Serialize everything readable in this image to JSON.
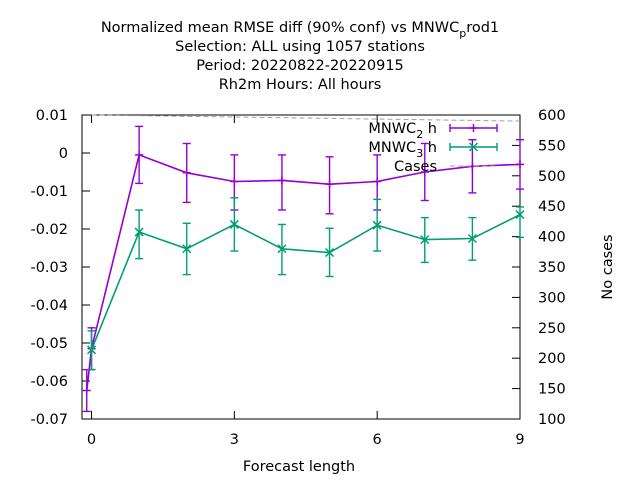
{
  "chart_data": {
    "type": "line",
    "title_lines": [
      "Normalized mean RMSE diff (90% conf) vs MNWC",
      "p",
      "rod1",
      "Selection: ALL using  1057 stations",
      "Period: 20220822-20220915",
      "Rh2m   Hours:  All hours"
    ],
    "xlabel": "Forecast length",
    "ylabel_right": "No cases",
    "xlim": [
      -0.2,
      9
    ],
    "ylim": [
      -0.07,
      0.01
    ],
    "y2lim": [
      100,
      600
    ],
    "x_ticks": [
      "0",
      "3",
      "6",
      "9"
    ],
    "y_ticks": [
      "0.01",
      "0",
      "-0.01",
      "-0.02",
      "-0.03",
      "-0.04",
      "-0.05",
      "-0.06",
      "-0.07"
    ],
    "y2_ticks": [
      "600",
      "550",
      "500",
      "450",
      "400",
      "350",
      "300",
      "250",
      "200",
      "150",
      "100"
    ],
    "x": [
      0,
      1,
      2,
      3,
      4,
      5,
      6,
      7,
      8,
      9
    ],
    "series": [
      {
        "name_main": "MNWC",
        "name_sub": "2",
        "name_tail": "h",
        "color": "#9400d3",
        "marker": "plus",
        "x": [
          -0.1,
          0,
          1,
          2,
          3,
          4,
          5,
          6,
          7,
          8,
          9
        ],
        "values": [
          -0.0625,
          -0.0515,
          -0.0005,
          -0.0052,
          -0.0075,
          -0.0072,
          -0.0082,
          -0.0075,
          -0.005,
          -0.0035,
          -0.003
        ],
        "low": [
          -0.068,
          -0.057,
          -0.008,
          -0.013,
          -0.015,
          -0.015,
          -0.016,
          -0.015,
          -0.0125,
          -0.0105,
          -0.0095
        ],
        "high": [
          -0.057,
          -0.046,
          0.007,
          0.0025,
          -0.0005,
          -0.0005,
          -0.001,
          -0.0005,
          0.0025,
          0.0035,
          0.0035
        ]
      },
      {
        "name_main": "MNWC",
        "name_sub": "3",
        "name_tail": "h",
        "color": "#009e73",
        "marker": "x",
        "x": [
          0,
          1,
          2,
          3,
          4,
          5,
          6,
          7,
          8,
          9
        ],
        "values": [
          -0.0518,
          -0.0208,
          -0.0252,
          -0.0188,
          -0.0252,
          -0.0262,
          -0.019,
          -0.0228,
          -0.0225,
          -0.0162
        ],
        "low": [
          -0.057,
          -0.0278,
          -0.032,
          -0.0258,
          -0.032,
          -0.0325,
          -0.0258,
          -0.0288,
          -0.0282,
          -0.0222
        ],
        "high": [
          -0.0468,
          -0.015,
          -0.0185,
          -0.0118,
          -0.0188,
          -0.0198,
          -0.0122,
          -0.017,
          -0.017,
          -0.0142
        ]
      },
      {
        "name": "Cases",
        "color": "#a0a0a0",
        "dash": true,
        "axis": "y2",
        "x": [
          0,
          9
        ],
        "values": [
          600,
          590
        ]
      }
    ],
    "grid": false,
    "legend": "top-right"
  }
}
